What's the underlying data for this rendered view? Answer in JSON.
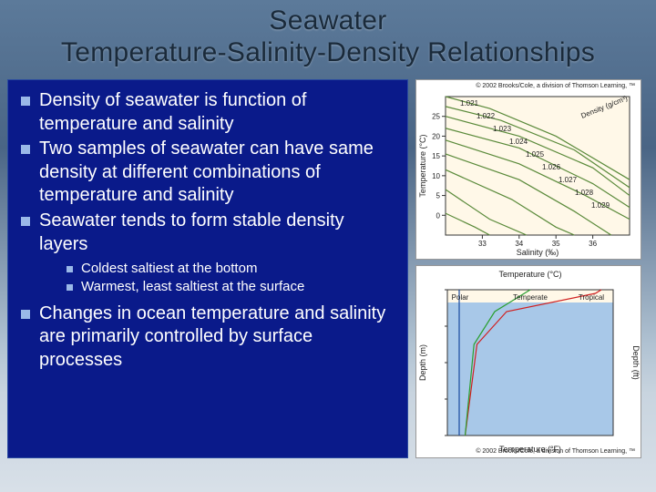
{
  "slide": {
    "title": "Seawater\nTemperature-Salinity-Density Relationships",
    "bullets": [
      "Density of seawater is function of temperature and salinity",
      "Two samples of seawater can have same density at different combinations of temperature and salinity",
      "Seawater tends to form stable density layers"
    ],
    "sub_bullets": [
      "Coldest saltiest at the bottom",
      "Warmest, least saltiest at the surface"
    ],
    "bullet_after_sub": "Changes in ocean temperature and salinity are primarily controlled by surface processes",
    "colors": {
      "content_bg": "#0a1a8a",
      "bullet_marker": "#9ab8e8",
      "text": "#ffffff",
      "title": "#1a2a3a"
    }
  },
  "figure1": {
    "type": "line",
    "copyright": "© 2002 Brooks/Cole, a division of Thomson Learning, ™",
    "xlabel": "Salinity (‰)",
    "ylabel": "Temperature (°C)",
    "density_unit": "Density (g/cm³)",
    "xlim": [
      32,
      37
    ],
    "ylim": [
      -5,
      30
    ],
    "xticks": [
      33,
      34,
      35,
      36
    ],
    "yticks": [
      0,
      5,
      10,
      15,
      20,
      25
    ],
    "curve_color": "#5a8a3a",
    "bg_color": "#fff8e8",
    "density_labels": [
      "1.021",
      "1.022",
      "1.023",
      "1.024",
      "1.025",
      "1.026",
      "1.027",
      "1.028",
      "1.029"
    ],
    "curves": [
      [
        [
          32,
          30
        ],
        [
          33.2,
          27
        ],
        [
          35,
          20
        ],
        [
          37,
          9
        ]
      ],
      [
        [
          32,
          27.5
        ],
        [
          33.5,
          24
        ],
        [
          35.5,
          16.5
        ],
        [
          37,
          7
        ]
      ],
      [
        [
          32,
          25
        ],
        [
          34,
          20
        ],
        [
          36,
          12
        ],
        [
          37,
          5
        ]
      ],
      [
        [
          32,
          22
        ],
        [
          34,
          17
        ],
        [
          36,
          8
        ],
        [
          37,
          2
        ]
      ],
      [
        [
          32,
          19
        ],
        [
          34,
          13
        ],
        [
          35.8,
          5
        ],
        [
          37,
          -1
        ]
      ],
      [
        [
          32,
          15.5
        ],
        [
          34,
          9
        ],
        [
          35.5,
          1
        ],
        [
          36.5,
          -5
        ]
      ],
      [
        [
          32,
          11.5
        ],
        [
          33.8,
          4
        ],
        [
          35,
          -3
        ],
        [
          35.5,
          -5
        ]
      ],
      [
        [
          32,
          6.5
        ],
        [
          33.2,
          -1
        ],
        [
          34.2,
          -5
        ]
      ],
      [
        [
          32,
          0.5
        ],
        [
          32.8,
          -3
        ],
        [
          33.2,
          -5
        ]
      ]
    ]
  },
  "figure2": {
    "type": "line",
    "copyright": "© 2002 Brooks/Cole, a division of Thomson Learning, ™",
    "top_xlabel": "Temperature (°C)",
    "ylabel_left": "Depth (m)",
    "ylabel_right": "Depth (ft)",
    "bottom_xlabel": "Temperature (°F)",
    "bg_top": "#fff8e8",
    "bg_body": "#a8c8e8",
    "curves": {
      "Polar": {
        "color": "#1a4aa0",
        "points": [
          [
            2,
            0
          ],
          [
            2,
            100
          ],
          [
            2,
            600
          ],
          [
            2,
            1500
          ],
          [
            2,
            4000
          ]
        ]
      },
      "Tropical": {
        "color": "#d02020",
        "points": [
          [
            26,
            0
          ],
          [
            25,
            100
          ],
          [
            10,
            600
          ],
          [
            5,
            1500
          ],
          [
            3,
            4000
          ]
        ]
      },
      "Temperate": {
        "color": "#2aa030",
        "points": [
          [
            14,
            0
          ],
          [
            13,
            100
          ],
          [
            8,
            600
          ],
          [
            4.5,
            1500
          ],
          [
            3,
            4000
          ]
        ]
      }
    },
    "xlim": [
      0,
      28
    ],
    "ylim": [
      0,
      4000
    ]
  }
}
